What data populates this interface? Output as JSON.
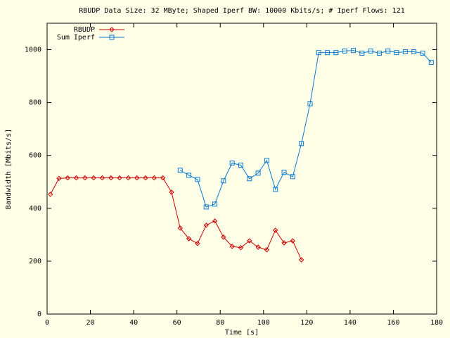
{
  "chart_data": {
    "type": "line",
    "title": "RBUDP Data Size: 32 MByte; Shaped Iperf BW: 10000 Kbits/s; # Iperf Flows: 121",
    "x_label": "Time [s]",
    "y_label": "Bandwidth [Mbits/s]",
    "xlim": [
      0,
      180
    ],
    "xticks": [
      0,
      20,
      40,
      60,
      80,
      100,
      120,
      140,
      160,
      180
    ],
    "ylim": [
      0,
      1100
    ],
    "yticks": [
      0,
      200,
      400,
      600,
      800,
      1000
    ],
    "grid": false,
    "legend": "top-left",
    "series": [
      {
        "name": "RBUDP",
        "color": "#cc0000",
        "marker": "diamond",
        "x": [
          1.5,
          5.5,
          9.5,
          13.5,
          17.5,
          21.5,
          25.5,
          29.5,
          33.5,
          37.5,
          41.5,
          45.5,
          49.5,
          53.5,
          57.5,
          61.5,
          65.5,
          69.5,
          73.5,
          77.5,
          81.5,
          85.5,
          89.5,
          93.5,
          97.5,
          101.5,
          105.5,
          109.5,
          113.5,
          117.5
        ],
        "values": [
          453,
          513,
          515,
          515,
          515,
          515,
          515,
          515,
          515,
          515,
          515,
          515,
          515,
          515,
          461,
          325,
          285,
          267,
          336,
          352,
          291,
          256,
          251,
          277,
          253,
          243,
          317,
          269,
          277,
          205
        ]
      },
      {
        "name": "Sum Iperf",
        "color": "#0a7ad0",
        "marker": "square",
        "x": [
          61.5,
          65.5,
          69.5,
          73.5,
          77.5,
          81.5,
          85.5,
          89.5,
          93.5,
          97.5,
          101.5,
          105.5,
          109.5,
          113.5,
          117.5,
          121.5,
          125.5,
          129.5,
          133.5,
          137.5,
          141.5,
          145.5,
          149.5,
          153.5,
          157.5,
          161.5,
          165.5,
          169.5,
          173.5,
          177.5
        ],
        "values": [
          544,
          525,
          509,
          405,
          416,
          504,
          571,
          563,
          512,
          533,
          581,
          472,
          536,
          520,
          645,
          795,
          989,
          989,
          989,
          995,
          997,
          987,
          995,
          987,
          995,
          989,
          992,
          992,
          987,
          952
        ]
      }
    ]
  }
}
